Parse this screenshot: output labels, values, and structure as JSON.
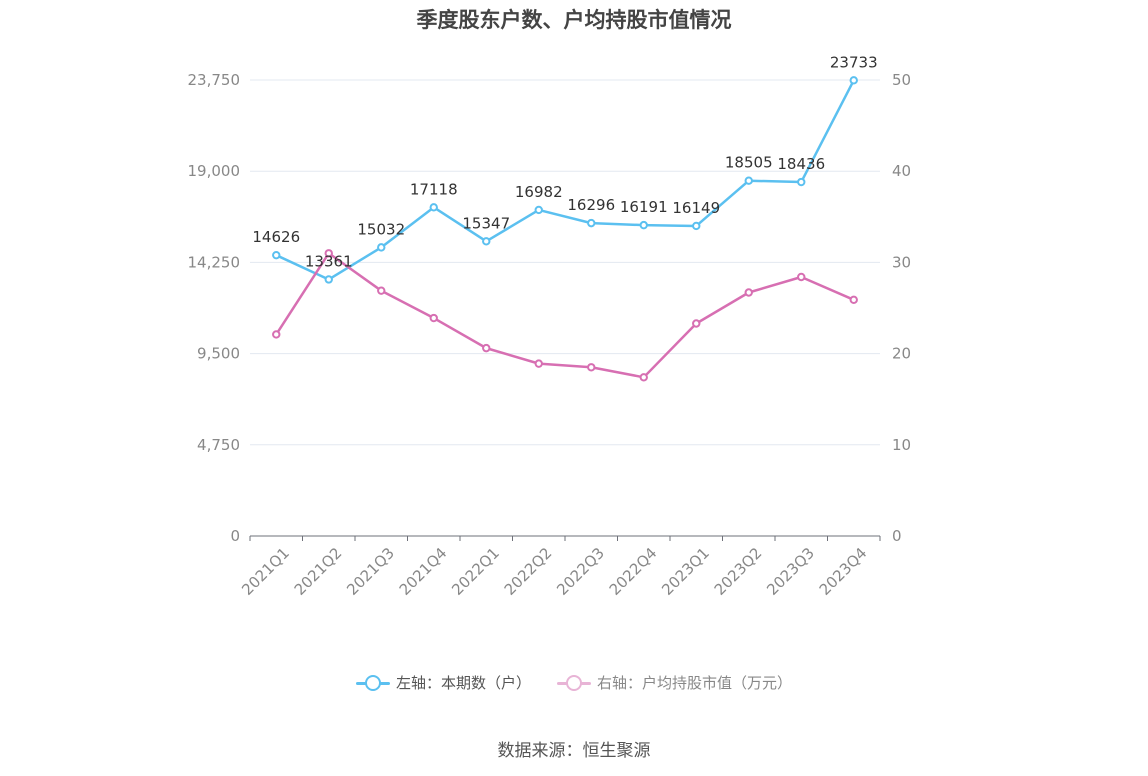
{
  "title": "季度股东户数、户均持股市值情况",
  "chart_data": {
    "type": "line",
    "title": "季度股东户数、户均持股市值情况",
    "categories": [
      "2021Q1",
      "2021Q2",
      "2021Q3",
      "2021Q4",
      "2022Q1",
      "2022Q2",
      "2022Q3",
      "2022Q4",
      "2023Q1",
      "2023Q2",
      "2023Q3",
      "2023Q4"
    ],
    "left_axis": {
      "ylim": [
        0,
        23750
      ],
      "ticks": [
        0,
        4750,
        9500,
        14250,
        19000,
        23750
      ],
      "tick_labels": [
        "0",
        "4,750",
        "9,500",
        "14,250",
        "19,000",
        "23,750"
      ]
    },
    "right_axis": {
      "ylim": [
        0,
        50
      ],
      "ticks": [
        0,
        10,
        20,
        30,
        40,
        50
      ],
      "tick_labels": [
        "0",
        "10",
        "20",
        "30",
        "40",
        "50"
      ]
    },
    "series": [
      {
        "name": "左轴：本期数（户）",
        "axis": "left",
        "color": "#5bc0f0",
        "values": [
          14626,
          13361,
          15032,
          17118,
          15347,
          16982,
          16296,
          16191,
          16149,
          18505,
          18436,
          23733
        ],
        "labels": [
          "14626",
          "13361",
          "15032",
          "17118",
          "15347",
          "16982",
          "16296",
          "16191",
          "16149",
          "18505",
          "18436",
          "23733"
        ]
      },
      {
        "name": "右轴：户均持股市值（万元）",
        "axis": "right",
        "color": "#d76fb2",
        "values": [
          22.1,
          31.0,
          26.9,
          23.9,
          20.6,
          18.9,
          18.5,
          17.4,
          23.3,
          26.7,
          28.4,
          25.9
        ]
      }
    ],
    "grid": true,
    "legend_position": "bottom"
  },
  "legend": {
    "left_label": "左轴：本期数（户）",
    "right_label": "右轴：户均持股市值（万元）"
  },
  "source": "数据来源：恒生聚源"
}
